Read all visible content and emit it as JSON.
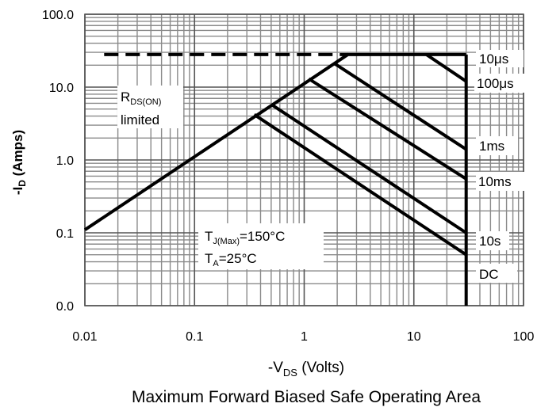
{
  "chart_data": {
    "type": "line",
    "title": "Maximum Forward Biased Safe Operating Area",
    "xlabel": {
      "prefix": "-V",
      "sub": "DS",
      "suffix": " (Volts)"
    },
    "ylabel": {
      "prefix": "-I",
      "sub": "D",
      "suffix": " (Amps)"
    },
    "x_scale": "log",
    "y_scale": "log",
    "xlim": [
      0.01,
      100
    ],
    "ylim": [
      0.01,
      100
    ],
    "x_ticks": [
      {
        "value": 0.01,
        "label": "0.01"
      },
      {
        "value": 0.1,
        "label": "0.1"
      },
      {
        "value": 1,
        "label": "1"
      },
      {
        "value": 10,
        "label": "10"
      },
      {
        "value": 100,
        "label": "100"
      }
    ],
    "y_ticks": [
      {
        "value": 0.01,
        "label": "0.0"
      },
      {
        "value": 0.1,
        "label": "0.1"
      },
      {
        "value": 1,
        "label": "1.0"
      },
      {
        "value": 10,
        "label": "10.0"
      },
      {
        "value": 100,
        "label": "100.0"
      }
    ],
    "grid": true,
    "series": [
      {
        "name": "",
        "style": "dashed",
        "points": [
          [
            0.015,
            28
          ],
          [
            2.5,
            28
          ]
        ]
      },
      {
        "name": "",
        "style": "solid",
        "points": [
          [
            0.01,
            0.11
          ],
          [
            2.5,
            28
          ],
          [
            30,
            28
          ]
        ]
      },
      {
        "name": "",
        "style": "solid",
        "points": [
          [
            13,
            28
          ],
          [
            30,
            12
          ]
        ]
      },
      {
        "name": "",
        "style": "solid",
        "points": [
          [
            1.9,
            21
          ],
          [
            30,
            1.4
          ]
        ]
      },
      {
        "name": "",
        "style": "solid",
        "points": [
          [
            1.1,
            13
          ],
          [
            30,
            0.55
          ]
        ]
      },
      {
        "name": "",
        "style": "solid",
        "points": [
          [
            0.5,
            5.8
          ],
          [
            30,
            0.1
          ]
        ]
      },
      {
        "name": "",
        "style": "solid",
        "points": [
          [
            0.35,
            4.2
          ],
          [
            30,
            0.05
          ]
        ]
      },
      {
        "name": "",
        "style": "solid",
        "points": [
          [
            30,
            28
          ],
          [
            30,
            0.01
          ]
        ]
      }
    ],
    "annotations": {
      "rds_label": {
        "text": "R",
        "sub": "DS(ON)",
        "line2": "limited"
      },
      "tj_label": {
        "prefix": "T",
        "sub": "J(Max)",
        "suffix": "=150°C"
      },
      "ta_label": {
        "prefix": "T",
        "sub": "A",
        "suffix": "=25°C"
      },
      "series_labels": [
        "10μs",
        "100μs",
        "1ms",
        "10ms",
        "10s",
        "DC"
      ]
    }
  }
}
